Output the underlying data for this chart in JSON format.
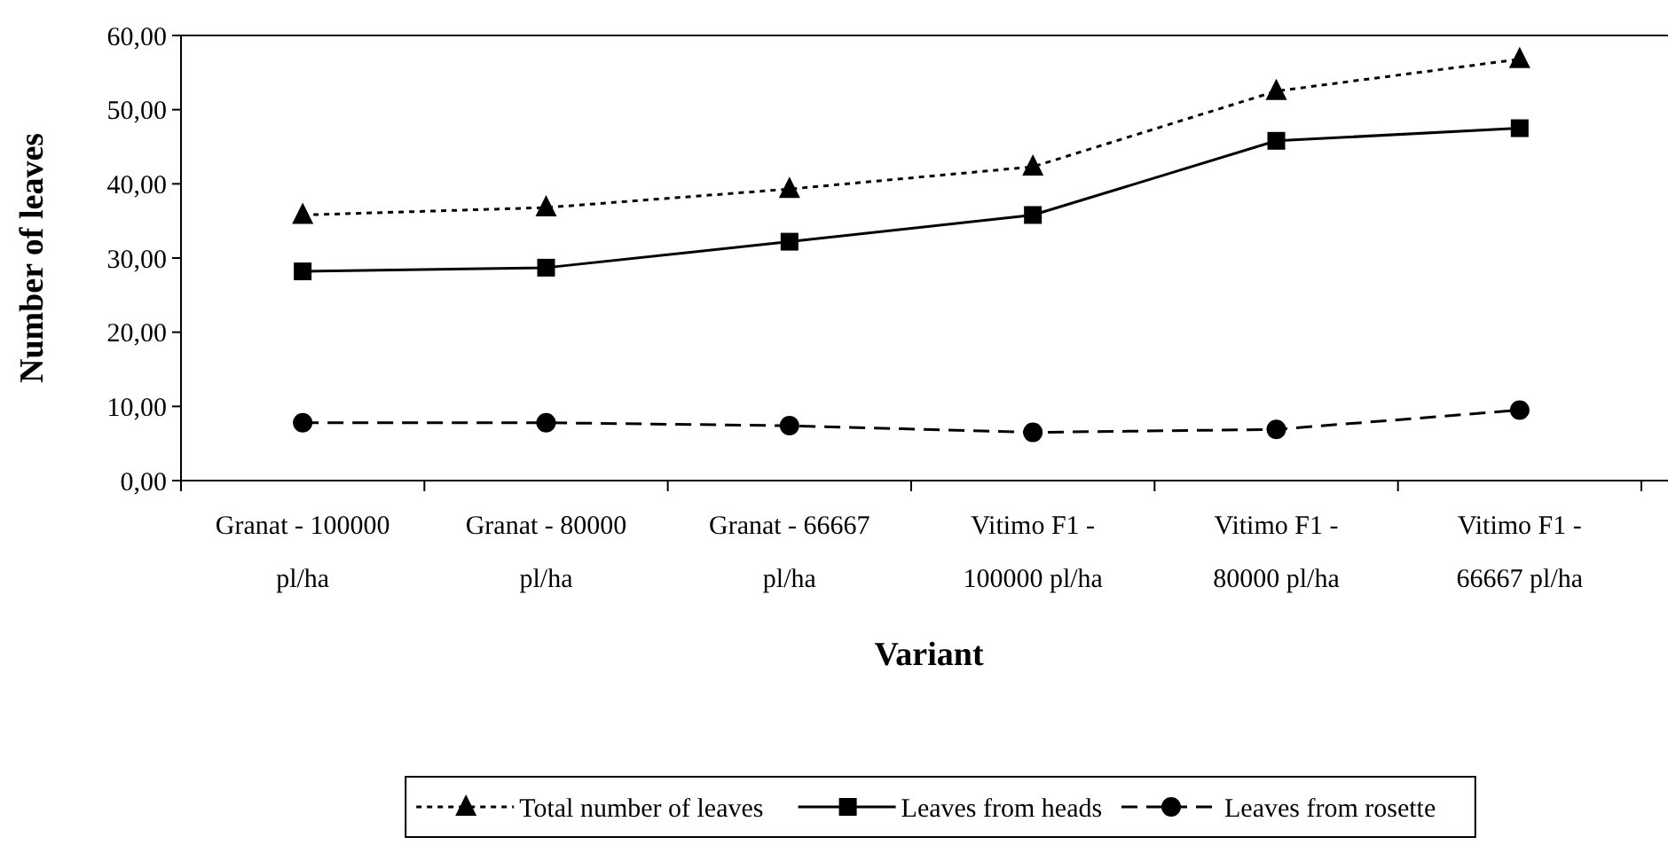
{
  "chart_data": {
    "type": "line",
    "xlabel": "Variant",
    "ylabel": "Number of leaves",
    "categories": [
      "Granat - 100000 pl/ha",
      "Granat - 80000 pl/ha",
      "Granat - 66667 pl/ha",
      "Vitimo F1 - 100000 pl/ha",
      "Vitimo F1 - 80000 pl/ha",
      "Vitimo F1 - 66667 pl/ha"
    ],
    "series": [
      {
        "name": "Total number of leaves",
        "color": "#000000",
        "line_style": "dotted",
        "marker": "triangle",
        "values": [
          35.8,
          36.8,
          39.3,
          42.3,
          52.5,
          56.8
        ]
      },
      {
        "name": "Leaves from heads",
        "color": "#000000",
        "line_style": "solid",
        "marker": "square",
        "values": [
          28.2,
          28.7,
          32.2,
          35.8,
          45.8,
          47.5
        ]
      },
      {
        "name": "Leaves from rosette",
        "color": "#000000",
        "line_style": "dashed",
        "marker": "circle",
        "values": [
          7.8,
          7.8,
          7.4,
          6.5,
          6.9,
          9.5
        ]
      }
    ],
    "ylim": [
      0,
      60
    ],
    "yticks": [
      {
        "value": 0,
        "label": "0,00"
      },
      {
        "value": 10,
        "label": "10,00"
      },
      {
        "value": 20,
        "label": "20,00"
      },
      {
        "value": 30,
        "label": "30,00"
      },
      {
        "value": 40,
        "label": "40,00"
      },
      {
        "value": 50,
        "label": "50,00"
      },
      {
        "value": 60,
        "label": "60,00"
      }
    ],
    "grid": false,
    "legend": "bottom"
  }
}
